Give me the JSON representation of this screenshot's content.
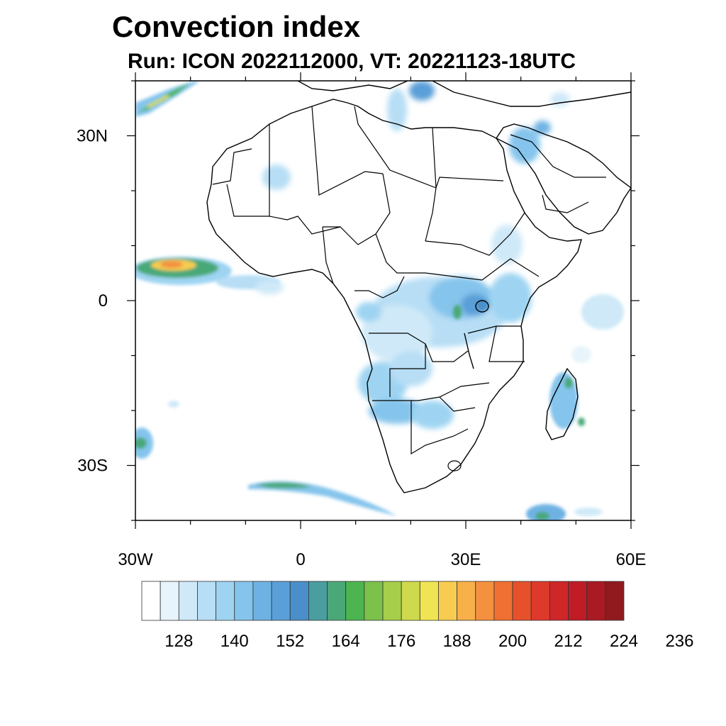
{
  "title": "Convection index",
  "subtitle": "Run: ICON 2022112000,  VT: 20221123-18UTC",
  "map": {
    "lon_range": [
      -30,
      60
    ],
    "lat_range": [
      -40,
      40
    ],
    "lon_ticks": [
      {
        "value": -30,
        "label": "30W"
      },
      {
        "value": 0,
        "label": "0"
      },
      {
        "value": 30,
        "label": "30E"
      },
      {
        "value": 60,
        "label": "60E"
      }
    ],
    "lat_ticks": [
      {
        "value": 30,
        "label": "30N"
      },
      {
        "value": 0,
        "label": "0"
      },
      {
        "value": -30,
        "label": "30S"
      }
    ]
  },
  "colorbar": {
    "colors": [
      "#ffffff",
      "#e8f4fb",
      "#cfe9f8",
      "#b7def5",
      "#9ed4f2",
      "#85c4ec",
      "#6eb2e3",
      "#5a9fd8",
      "#4a8fc9",
      "#4a9ea0",
      "#4aa878",
      "#4db54f",
      "#7cc14a",
      "#a6ce4a",
      "#cfd94d",
      "#f0e452",
      "#f7cc50",
      "#f7b04a",
      "#f49140",
      "#ef7032",
      "#e6512b",
      "#dd3a2b",
      "#cf2628",
      "#bf1c25",
      "#a91a22",
      "#901a1e"
    ],
    "labels": [
      "128",
      "140",
      "152",
      "164",
      "176",
      "188",
      "200",
      "212",
      "224",
      "236"
    ]
  },
  "chart_data": {
    "type": "heatmap",
    "variable": "Convection index",
    "levels": [
      116,
      120,
      124,
      128,
      132,
      136,
      140,
      144,
      148,
      152,
      156,
      160,
      164,
      168,
      172,
      176,
      180,
      184,
      188,
      192,
      196,
      200,
      204,
      208,
      212,
      216,
      220,
      224,
      228,
      232,
      236
    ],
    "regions": [
      {
        "lon": -26,
        "lat": 36,
        "value": 165
      },
      {
        "lon": -25,
        "lat": 7,
        "value": 200
      },
      {
        "lon": -20,
        "lat": 6,
        "value": 170
      },
      {
        "lon": 28,
        "lat": -2,
        "value": 165
      },
      {
        "lon": 48,
        "lat": -18,
        "value": 160
      },
      {
        "lon": -28,
        "lat": -26,
        "value": 155
      },
      {
        "lon": -4,
        "lat": -34,
        "value": 160
      },
      {
        "lon": 43,
        "lat": -39,
        "value": 155
      }
    ]
  }
}
